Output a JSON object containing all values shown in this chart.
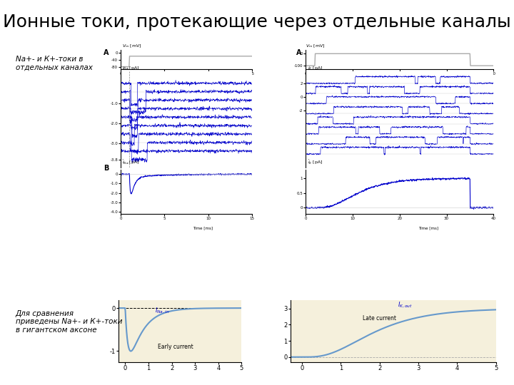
{
  "title": "Ионные токи, протекающие через отдельные каналы",
  "title_fontsize": 18,
  "subtitle_left": "Na+- и К+-токи в\nотдельных каналах",
  "subtitle_bottom": "Для сравнения\nприведены Na+- и К+-токи\nв гигантском аксоне",
  "bg_color": "#ffffff",
  "panel_bg": "#f5f0dc",
  "blue": "#0000cc",
  "gray": "#888888",
  "lightblue": "#6699cc"
}
